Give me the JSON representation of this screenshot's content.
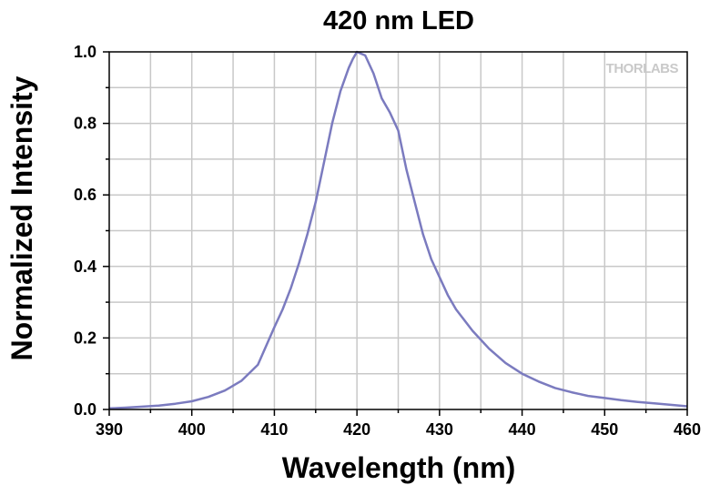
{
  "chart_data": {
    "type": "line",
    "title": "420 nm LED",
    "xlabel": "Wavelength (nm)",
    "ylabel": "Normalized Intensity",
    "xlim": [
      390,
      460
    ],
    "ylim": [
      0,
      1.0
    ],
    "x_ticks": [
      "390",
      "400",
      "410",
      "420",
      "430",
      "440",
      "450",
      "460"
    ],
    "y_ticks": [
      "0.0",
      "0.2",
      "0.4",
      "0.6",
      "0.8",
      "1.0"
    ],
    "grid": true,
    "legend": "none",
    "series": [
      {
        "color": "#7b7bbf",
        "x": [
          390,
          392,
          394,
          396,
          398,
          400,
          402,
          404,
          406,
          408,
          410,
          411,
          412,
          413,
          414,
          415,
          416,
          417,
          418,
          419,
          419.5,
          420,
          420.5,
          421,
          422,
          423,
          424,
          425,
          426,
          427,
          428,
          429,
          430,
          431,
          432,
          434,
          436,
          438,
          440,
          442,
          444,
          446,
          448,
          450,
          452,
          454,
          456,
          458,
          460
        ],
        "y": [
          0.003,
          0.005,
          0.008,
          0.011,
          0.016,
          0.023,
          0.035,
          0.053,
          0.08,
          0.125,
          0.23,
          0.28,
          0.34,
          0.41,
          0.49,
          0.58,
          0.69,
          0.8,
          0.89,
          0.955,
          0.98,
          1.0,
          0.995,
          0.99,
          0.94,
          0.87,
          0.83,
          0.78,
          0.67,
          0.58,
          0.49,
          0.42,
          0.37,
          0.32,
          0.28,
          0.22,
          0.17,
          0.13,
          0.1,
          0.078,
          0.06,
          0.048,
          0.038,
          0.032,
          0.026,
          0.021,
          0.017,
          0.013,
          0.009
        ]
      }
    ]
  },
  "watermark": "THORLABS"
}
